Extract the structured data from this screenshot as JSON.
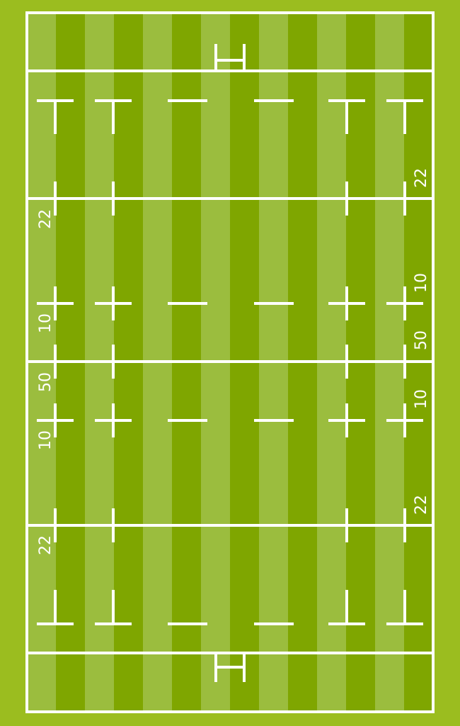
{
  "colors": {
    "surround": "#9bbd1f",
    "stripe_light": "#9bbd3e",
    "stripe_dark": "#7fa600",
    "line": "#ffffff"
  },
  "stripes": {
    "count": 14,
    "first": "light"
  },
  "labels": {
    "top_22_right": "22",
    "top_22_left": "22",
    "upper_10_right": "10",
    "upper_10_left": "10",
    "half_50_right": "50",
    "half_50_left": "50",
    "lower_10_right": "10",
    "lower_10_left": "10",
    "bottom_22_right": "22",
    "bottom_22_left": "22"
  }
}
